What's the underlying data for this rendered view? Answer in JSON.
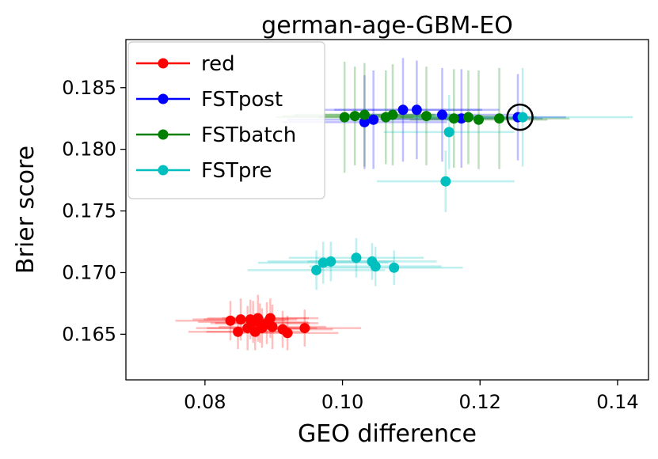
{
  "chart_data": {
    "type": "scatter",
    "title": "german-age-GBM-EO",
    "xlabel": "GEO difference",
    "ylabel": "Brier score",
    "xlim": [
      0.0685,
      0.1445
    ],
    "ylim": [
      0.1613,
      0.1889
    ],
    "xticks": [
      0.08,
      0.1,
      0.12,
      0.14
    ],
    "xtick_labels": [
      "0.08",
      "0.10",
      "0.12",
      "0.14"
    ],
    "yticks": [
      0.165,
      0.17,
      0.175,
      0.18,
      0.185
    ],
    "ytick_labels": [
      "0.165",
      "0.170",
      "0.175",
      "0.180",
      "0.185"
    ],
    "grid": false,
    "legend_position": "upper-left",
    "series": [
      {
        "name": "red",
        "color": "#ff0000",
        "points": [
          {
            "x": 0.0837,
            "y": 0.1661,
            "xerr": 0.008,
            "yerr": 0.0016
          },
          {
            "x": 0.0848,
            "y": 0.1652,
            "xerr": 0.0072,
            "yerr": 0.0014
          },
          {
            "x": 0.0852,
            "y": 0.1662,
            "xerr": 0.007,
            "yerr": 0.0017
          },
          {
            "x": 0.0862,
            "y": 0.1655,
            "xerr": 0.0075,
            "yerr": 0.0018
          },
          {
            "x": 0.0866,
            "y": 0.1662,
            "xerr": 0.0068,
            "yerr": 0.0016
          },
          {
            "x": 0.087,
            "y": 0.166,
            "xerr": 0.008,
            "yerr": 0.0017
          },
          {
            "x": 0.0873,
            "y": 0.1652,
            "xerr": 0.0071,
            "yerr": 0.0015
          },
          {
            "x": 0.0877,
            "y": 0.1663,
            "xerr": 0.0074,
            "yerr": 0.0019
          },
          {
            "x": 0.088,
            "y": 0.1659,
            "xerr": 0.0072,
            "yerr": 0.0016
          },
          {
            "x": 0.0883,
            "y": 0.1655,
            "xerr": 0.008,
            "yerr": 0.0016
          },
          {
            "x": 0.089,
            "y": 0.1659,
            "xerr": 0.0075,
            "yerr": 0.0017
          },
          {
            "x": 0.0895,
            "y": 0.1663,
            "xerr": 0.007,
            "yerr": 0.0016
          },
          {
            "x": 0.0898,
            "y": 0.1656,
            "xerr": 0.0078,
            "yerr": 0.0018
          },
          {
            "x": 0.0913,
            "y": 0.1654,
            "xerr": 0.0073,
            "yerr": 0.0015
          },
          {
            "x": 0.092,
            "y": 0.1651,
            "xerr": 0.0074,
            "yerr": 0.0014
          },
          {
            "x": 0.0945,
            "y": 0.1655,
            "xerr": 0.0082,
            "yerr": 0.0015
          }
        ]
      },
      {
        "name": "FSTpost",
        "color": "#0000ff",
        "points": [
          {
            "x": 0.1032,
            "y": 0.1822,
            "xerr": 0.012,
            "yerr": 0.0038
          },
          {
            "x": 0.1045,
            "y": 0.1824,
            "xerr": 0.0125,
            "yerr": 0.004
          },
          {
            "x": 0.1088,
            "y": 0.1832,
            "xerr": 0.0115,
            "yerr": 0.0042
          },
          {
            "x": 0.1108,
            "y": 0.1832,
            "xerr": 0.012,
            "yerr": 0.004
          },
          {
            "x": 0.1145,
            "y": 0.1828,
            "xerr": 0.011,
            "yerr": 0.0038
          },
          {
            "x": 0.1173,
            "y": 0.1825,
            "xerr": 0.0118,
            "yerr": 0.004
          },
          {
            "x": 0.1255,
            "y": 0.1826,
            "xerr": 0.007,
            "yerr": 0.0035
          }
        ]
      },
      {
        "name": "FSTbatch",
        "color": "#008000",
        "points": [
          {
            "x": 0.1003,
            "y": 0.1826,
            "xerr": 0.01,
            "yerr": 0.0045
          },
          {
            "x": 0.1018,
            "y": 0.1827,
            "xerr": 0.0105,
            "yerr": 0.004
          },
          {
            "x": 0.1032,
            "y": 0.1828,
            "xerr": 0.0102,
            "yerr": 0.0042
          },
          {
            "x": 0.1063,
            "y": 0.1826,
            "xerr": 0.0098,
            "yerr": 0.0038
          },
          {
            "x": 0.1073,
            "y": 0.1828,
            "xerr": 0.01,
            "yerr": 0.0041
          },
          {
            "x": 0.1122,
            "y": 0.1827,
            "xerr": 0.01,
            "yerr": 0.004
          },
          {
            "x": 0.1162,
            "y": 0.1825,
            "xerr": 0.0097,
            "yerr": 0.004
          },
          {
            "x": 0.1183,
            "y": 0.1826,
            "xerr": 0.0099,
            "yerr": 0.0038
          },
          {
            "x": 0.1198,
            "y": 0.1824,
            "xerr": 0.01,
            "yerr": 0.004
          },
          {
            "x": 0.1228,
            "y": 0.1825,
            "xerr": 0.0102,
            "yerr": 0.0041
          }
        ]
      },
      {
        "name": "FSTpre",
        "color": "#00bfbf",
        "points": [
          {
            "x": 0.0962,
            "y": 0.1702,
            "xerr": 0.01,
            "yerr": 0.0016
          },
          {
            "x": 0.0972,
            "y": 0.1708,
            "xerr": 0.0095,
            "yerr": 0.0017
          },
          {
            "x": 0.0983,
            "y": 0.1709,
            "xerr": 0.0092,
            "yerr": 0.0016
          },
          {
            "x": 0.102,
            "y": 0.1712,
            "xerr": 0.0098,
            "yerr": 0.0016
          },
          {
            "x": 0.1043,
            "y": 0.1709,
            "xerr": 0.0094,
            "yerr": 0.0015
          },
          {
            "x": 0.1048,
            "y": 0.1705,
            "xerr": 0.0096,
            "yerr": 0.0016
          },
          {
            "x": 0.1075,
            "y": 0.1704,
            "xerr": 0.01,
            "yerr": 0.0014
          },
          {
            "x": 0.115,
            "y": 0.1774,
            "xerr": 0.01,
            "yerr": 0.0025
          },
          {
            "x": 0.1155,
            "y": 0.1814,
            "xerr": 0.0095,
            "yerr": 0.003
          },
          {
            "x": 0.1262,
            "y": 0.1826,
            "xerr": 0.016,
            "yerr": 0.004
          }
        ]
      }
    ],
    "annotations": [
      {
        "type": "circle-marker",
        "x": 0.1258,
        "y": 0.1826
      }
    ]
  }
}
